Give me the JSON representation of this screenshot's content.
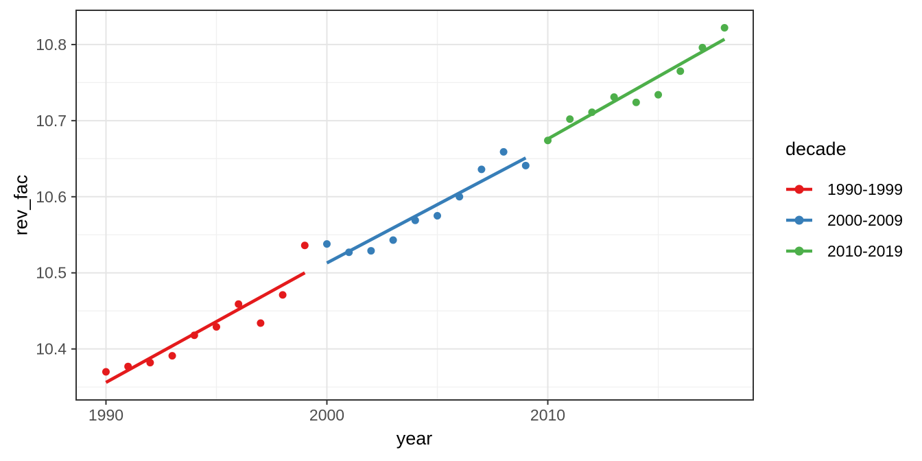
{
  "chart_data": {
    "type": "scatter",
    "title": "",
    "xlabel": "year",
    "ylabel": "rev_fac",
    "legend_title": "decade",
    "legend_position": "right",
    "grid": true,
    "xlim": [
      1988.65,
      2019.3
    ],
    "ylim": [
      10.333,
      10.845
    ],
    "x_ticks_major": [
      1990,
      2000,
      2010
    ],
    "x_tick_labels": [
      "1990",
      "2000",
      "2010"
    ],
    "x_ticks_minor": [
      1995,
      2005,
      2015
    ],
    "y_ticks_major": [
      10.4,
      10.5,
      10.6,
      10.7,
      10.8
    ],
    "y_tick_labels": [
      "10.4",
      "10.5",
      "10.6",
      "10.7",
      "10.8"
    ],
    "y_ticks_minor": [
      10.35,
      10.45,
      10.55,
      10.65,
      10.75
    ],
    "series": [
      {
        "name": "1990-1999",
        "color": "#E41A1C",
        "x": [
          1990,
          1991,
          1992,
          1993,
          1994,
          1995,
          1996,
          1997,
          1998,
          1999
        ],
        "y": [
          10.37,
          10.377,
          10.382,
          10.391,
          10.418,
          10.429,
          10.459,
          10.434,
          10.471,
          10.536
        ],
        "trend": {
          "x": [
            1990,
            1999
          ],
          "y": [
            10.356,
            10.5
          ]
        }
      },
      {
        "name": "2000-2009",
        "color": "#377EB8",
        "x": [
          2000,
          2001,
          2002,
          2003,
          2004,
          2005,
          2006,
          2007,
          2008,
          2009
        ],
        "y": [
          10.538,
          10.527,
          10.529,
          10.543,
          10.569,
          10.575,
          10.6,
          10.636,
          10.659,
          10.641
        ],
        "trend": {
          "x": [
            2000,
            2009
          ],
          "y": [
            10.513,
            10.651
          ]
        }
      },
      {
        "name": "2010-2019",
        "color": "#4DAF4A",
        "x": [
          2010,
          2011,
          2012,
          2013,
          2014,
          2015,
          2016,
          2017,
          2018
        ],
        "y": [
          10.674,
          10.702,
          10.711,
          10.731,
          10.724,
          10.734,
          10.765,
          10.796,
          10.822
        ],
        "trend": {
          "x": [
            2010,
            2018
          ],
          "y": [
            10.676,
            10.807
          ]
        }
      }
    ],
    "theme": {
      "background": "#FFFFFF",
      "panel_border": "#333333",
      "grid_major": "#E5E5E5",
      "grid_minor": "#F0F0F0",
      "tick_color": "#333333",
      "tick_label_color": "#4D4D4D",
      "title_color": "#000000"
    }
  }
}
